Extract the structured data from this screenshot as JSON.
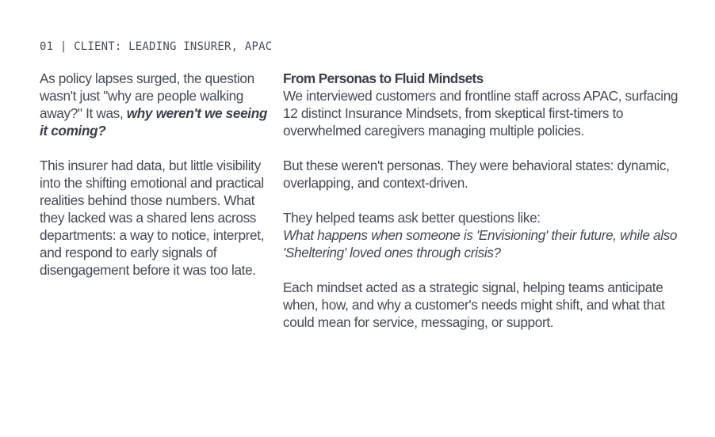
{
  "eyebrow": "01 | CLIENT: LEADING INSURER, APAC",
  "left": {
    "p1_text": "As policy lapses surged, the question wasn't just \"why are people walking away?\" It was, ",
    "p1_emphasis": "why weren't we seeing it coming?",
    "p2": "This insurer had data, but little visibility into the shifting emotional and practical realities behind those numbers. What they lacked was a shared lens across departments: a way to notice, interpret, and respond to early signals of disengagement before it was too late."
  },
  "right": {
    "heading": "From Personas to Fluid Mindsets",
    "p1": "We interviewed customers and frontline staff across APAC, surfacing 12 distinct Insurance Mindsets, from skeptical first-timers to overwhelmed caregivers managing multiple policies.",
    "p2": "But these weren't personas. They were behavioral states: dynamic, overlapping, and context-driven.",
    "p3_intro": "They helped teams ask better questions like:",
    "p3_question": "What happens when someone is 'Envisioning' their future, while also 'Sheltering' loved ones through crisis?",
    "p4": "Each mindset acted as a strategic signal, helping teams anticipate when, how, and why a customer's needs might shift, and what that could mean for service, messaging, or support."
  }
}
